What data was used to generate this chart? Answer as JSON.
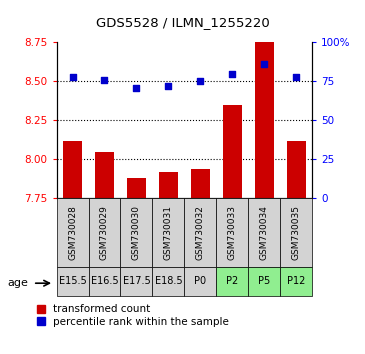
{
  "title": "GDS5528 / ILMN_1255220",
  "samples": [
    "GSM730028",
    "GSM730029",
    "GSM730030",
    "GSM730031",
    "GSM730032",
    "GSM730033",
    "GSM730034",
    "GSM730035"
  ],
  "ages": [
    "E15.5",
    "E16.5",
    "E17.5",
    "E18.5",
    "P0",
    "P2",
    "P5",
    "P12"
  ],
  "age_colors": [
    "#d3d3d3",
    "#d3d3d3",
    "#d3d3d3",
    "#d3d3d3",
    "#d3d3d3",
    "#90ee90",
    "#90ee90",
    "#90ee90"
  ],
  "sample_bg_color": "#d3d3d3",
  "transformed_counts": [
    8.12,
    8.05,
    7.88,
    7.92,
    7.94,
    8.35,
    8.88,
    8.12
  ],
  "percentile_ranks": [
    78,
    76,
    71,
    72,
    75,
    80,
    86,
    78
  ],
  "ylim_left": [
    7.75,
    8.75
  ],
  "ylim_right": [
    0,
    100
  ],
  "yticks_left": [
    7.75,
    8.0,
    8.25,
    8.5,
    8.75
  ],
  "yticks_right": [
    0,
    25,
    50,
    75,
    100
  ],
  "bar_color": "#cc0000",
  "dot_color": "#0000cc",
  "legend_red_label": "transformed count",
  "legend_blue_label": "percentile rank within the sample"
}
